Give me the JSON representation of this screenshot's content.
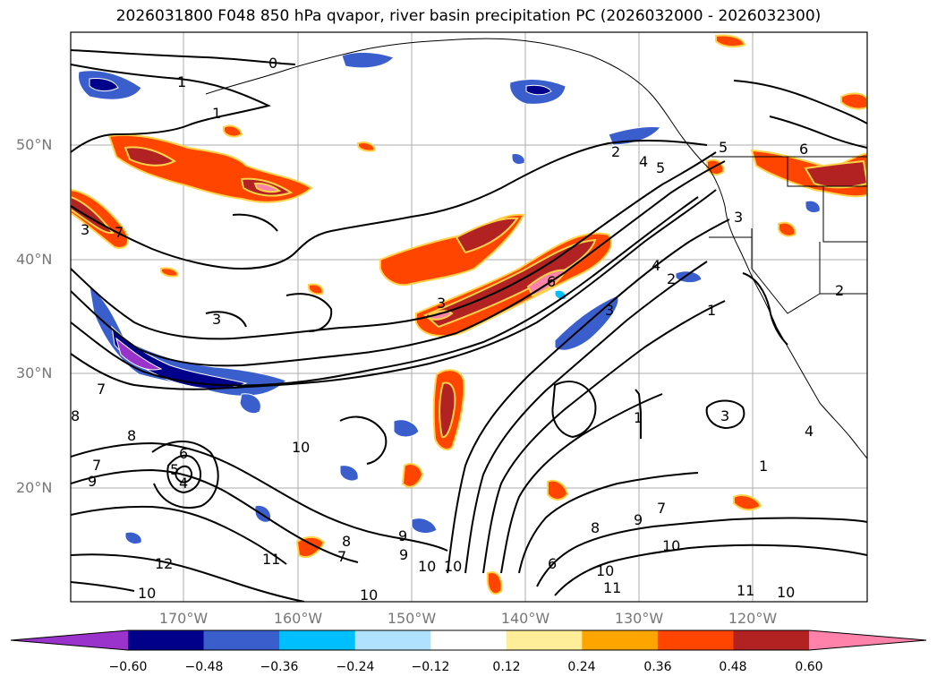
{
  "title": "2026031800 F048 850 hPa qvapor, river basin precipitation PC (2026032000 - 2026032300)",
  "lat_labels": [
    "50°N",
    "40°N",
    "30°N",
    "20°N"
  ],
  "lon_labels": [
    "170°W",
    "160°W",
    "150°W",
    "140°W",
    "130°W",
    "120°W"
  ],
  "colorbar": {
    "colors": [
      "#9a33cc",
      "#00008b",
      "#3a5fcd",
      "#00bfff",
      "#b0e2ff",
      "#ffffff",
      "#ffee99",
      "#ffa500",
      "#ff4500",
      "#b22222",
      "#ff82ab"
    ],
    "ticks": [
      "−0.60",
      "−0.48",
      "−0.36",
      "−0.24",
      "−0.12",
      "0.12",
      "0.24",
      "0.36",
      "0.48",
      "0.60"
    ]
  },
  "contour_labels": [
    "0",
    "1",
    "1",
    "2",
    "4",
    "5",
    "5",
    "6",
    "3",
    "2",
    "3",
    "3",
    "7",
    "3",
    "6",
    "4",
    "2",
    "1",
    "3",
    "7",
    "8",
    "6",
    "5",
    "4",
    "9",
    "7",
    "10",
    "1",
    "8",
    "9",
    "10",
    "3",
    "4",
    "1",
    "7",
    "9",
    "8",
    "10",
    "11",
    "12",
    "10",
    "7",
    "8",
    "9",
    "10",
    "10",
    "10",
    "6",
    "11",
    "11",
    "10"
  ]
}
